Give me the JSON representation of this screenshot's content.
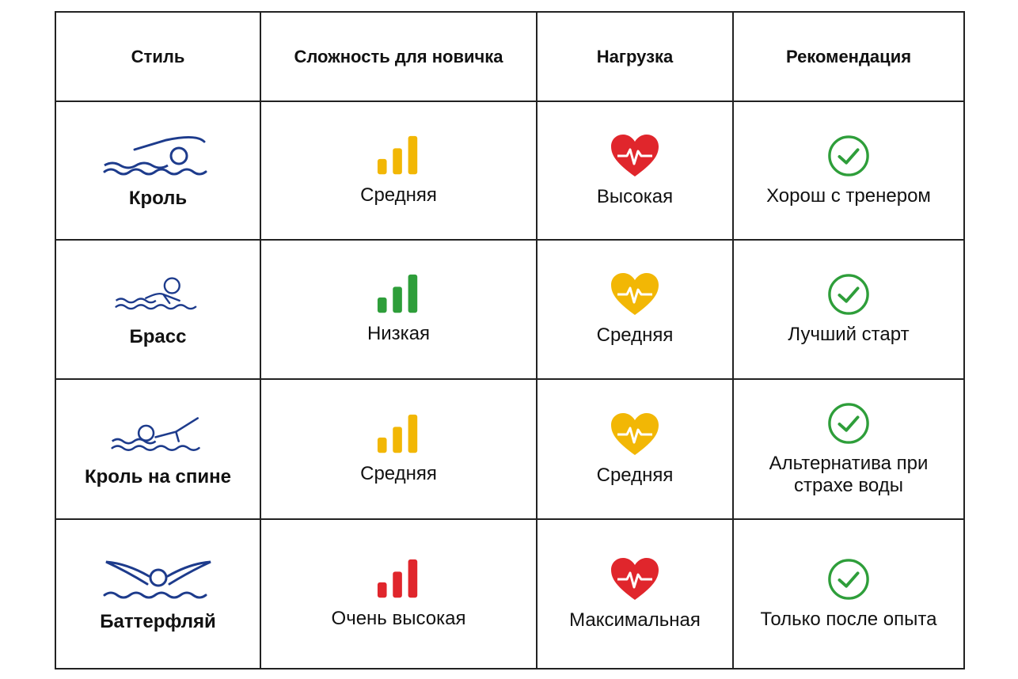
{
  "table": {
    "headers": [
      "Стиль",
      "Сложность для новичка",
      "Нагрузка",
      "Рекомендация"
    ],
    "rows": [
      [
        "Кроль",
        "Средняя",
        "Высокая",
        "Хорош с тренером"
      ],
      [
        "Брасс",
        "Низкая",
        "Средняя",
        "Лучший старт"
      ],
      [
        "Кроль на спине",
        "Средняя",
        "Средняя",
        "Альтернатива при страхе воды"
      ],
      [
        "Баттерфляй",
        "Очень высокая",
        "Максимальная",
        "Только после опыта"
      ]
    ]
  }
}
